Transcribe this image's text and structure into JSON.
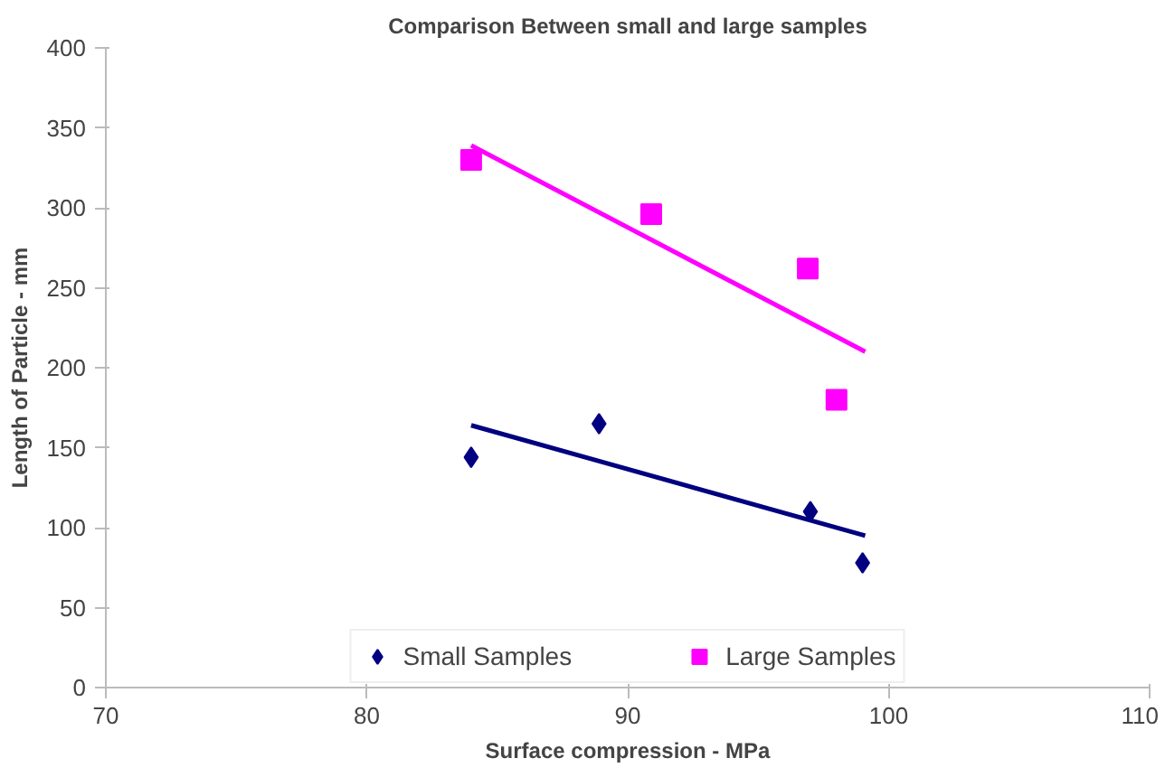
{
  "chart_data": {
    "type": "scatter",
    "title": "Comparison Between small and large samples",
    "xlabel": "Surface compression - MPa",
    "ylabel": "Length of Particle - mm",
    "xlim": [
      70,
      110
    ],
    "xticks": [
      70,
      80,
      90,
      100,
      110
    ],
    "ylim": [
      0,
      400
    ],
    "yticks": [
      0,
      50,
      100,
      150,
      200,
      250,
      300,
      350,
      400
    ],
    "grid": false,
    "legend": "bottom",
    "series": [
      {
        "name": "Small Samples",
        "color": "#000080",
        "marker": "diamond",
        "x": [
          84,
          88.9,
          97,
          99
        ],
        "values": [
          144,
          165,
          110,
          78
        ]
      },
      {
        "name": "Large Samples",
        "color": "#ff00ff",
        "marker": "square",
        "x": [
          84,
          90.9,
          96.9,
          98
        ],
        "values": [
          330,
          296,
          262,
          180
        ]
      },
      {
        "type": "line",
        "color": "#000080",
        "x": [
          84,
          99.1
        ],
        "values": [
          164,
          95
        ]
      },
      {
        "type": "line",
        "color": "#ff00ff",
        "x": [
          84,
          99.1
        ],
        "values": [
          339,
          210
        ]
      }
    ]
  }
}
